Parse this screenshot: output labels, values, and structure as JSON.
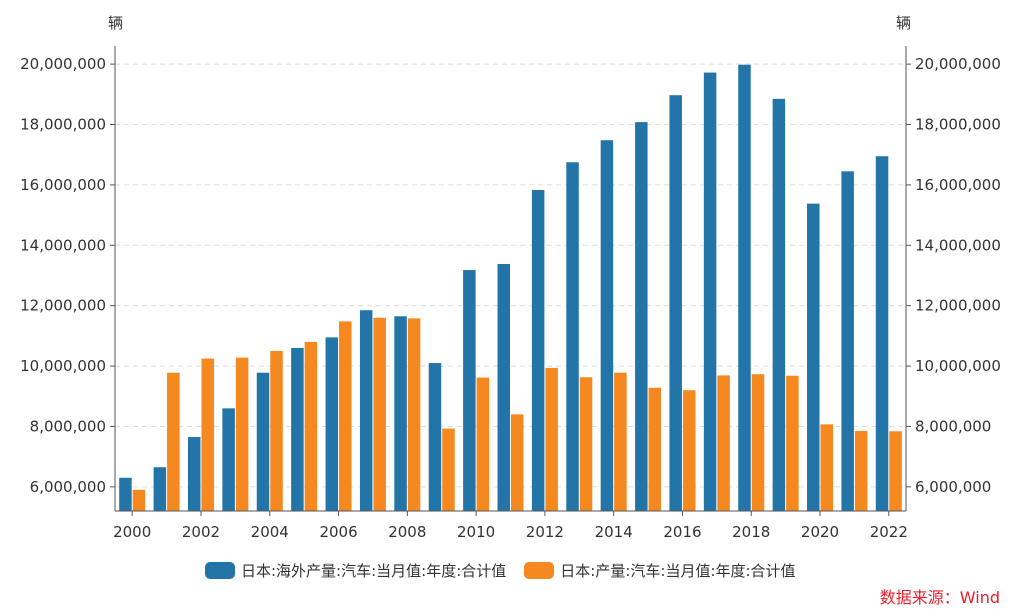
{
  "chart_data": {
    "type": "bar",
    "title": "",
    "unit_left": "辆",
    "unit_right": "辆",
    "ylim": [
      5200000,
      20600000
    ],
    "yticks": [
      6000000,
      8000000,
      10000000,
      12000000,
      14000000,
      16000000,
      18000000,
      20000000
    ],
    "ytick_labels": [
      "6,000,000",
      "8,000,000",
      "10,000,000",
      "12,000,000",
      "14,000,000",
      "16,000,000",
      "18,000,000",
      "20,000,000"
    ],
    "categories": [
      "2000",
      "2001",
      "2002",
      "2003",
      "2004",
      "2005",
      "2006",
      "2007",
      "2008",
      "2009",
      "2010",
      "2011",
      "2012",
      "2013",
      "2014",
      "2015",
      "2016",
      "2017",
      "2018",
      "2019",
      "2020",
      "2021",
      "2022"
    ],
    "xtick_labels": [
      "2000",
      "2002",
      "2004",
      "2006",
      "2008",
      "2010",
      "2012",
      "2014",
      "2016",
      "2018",
      "2020",
      "2022"
    ],
    "grid": true,
    "legend_position": "bottom",
    "series": [
      {
        "name": "日本:海外产量:汽车:当月值:年度:合计值",
        "color": "#2275a6",
        "values": [
          6300000,
          6650000,
          7650000,
          8600000,
          9780000,
          10600000,
          10950000,
          11850000,
          11650000,
          10100000,
          13180000,
          13380000,
          15830000,
          16750000,
          17480000,
          18080000,
          18970000,
          19720000,
          19980000,
          18850000,
          15380000,
          16450000,
          16950000
        ]
      },
      {
        "name": "日本:产量:汽车:当月值:年度:合计值",
        "color": "#f5881f",
        "values": [
          5900000,
          9780000,
          10250000,
          10280000,
          10500000,
          10800000,
          11480000,
          11600000,
          11580000,
          7930000,
          9620000,
          8400000,
          9940000,
          9630000,
          9780000,
          9280000,
          9200000,
          9690000,
          9730000,
          9680000,
          8070000,
          7850000,
          7840000
        ]
      }
    ]
  },
  "source": {
    "text": "数据来源：Wind",
    "color": "#e8202a"
  }
}
